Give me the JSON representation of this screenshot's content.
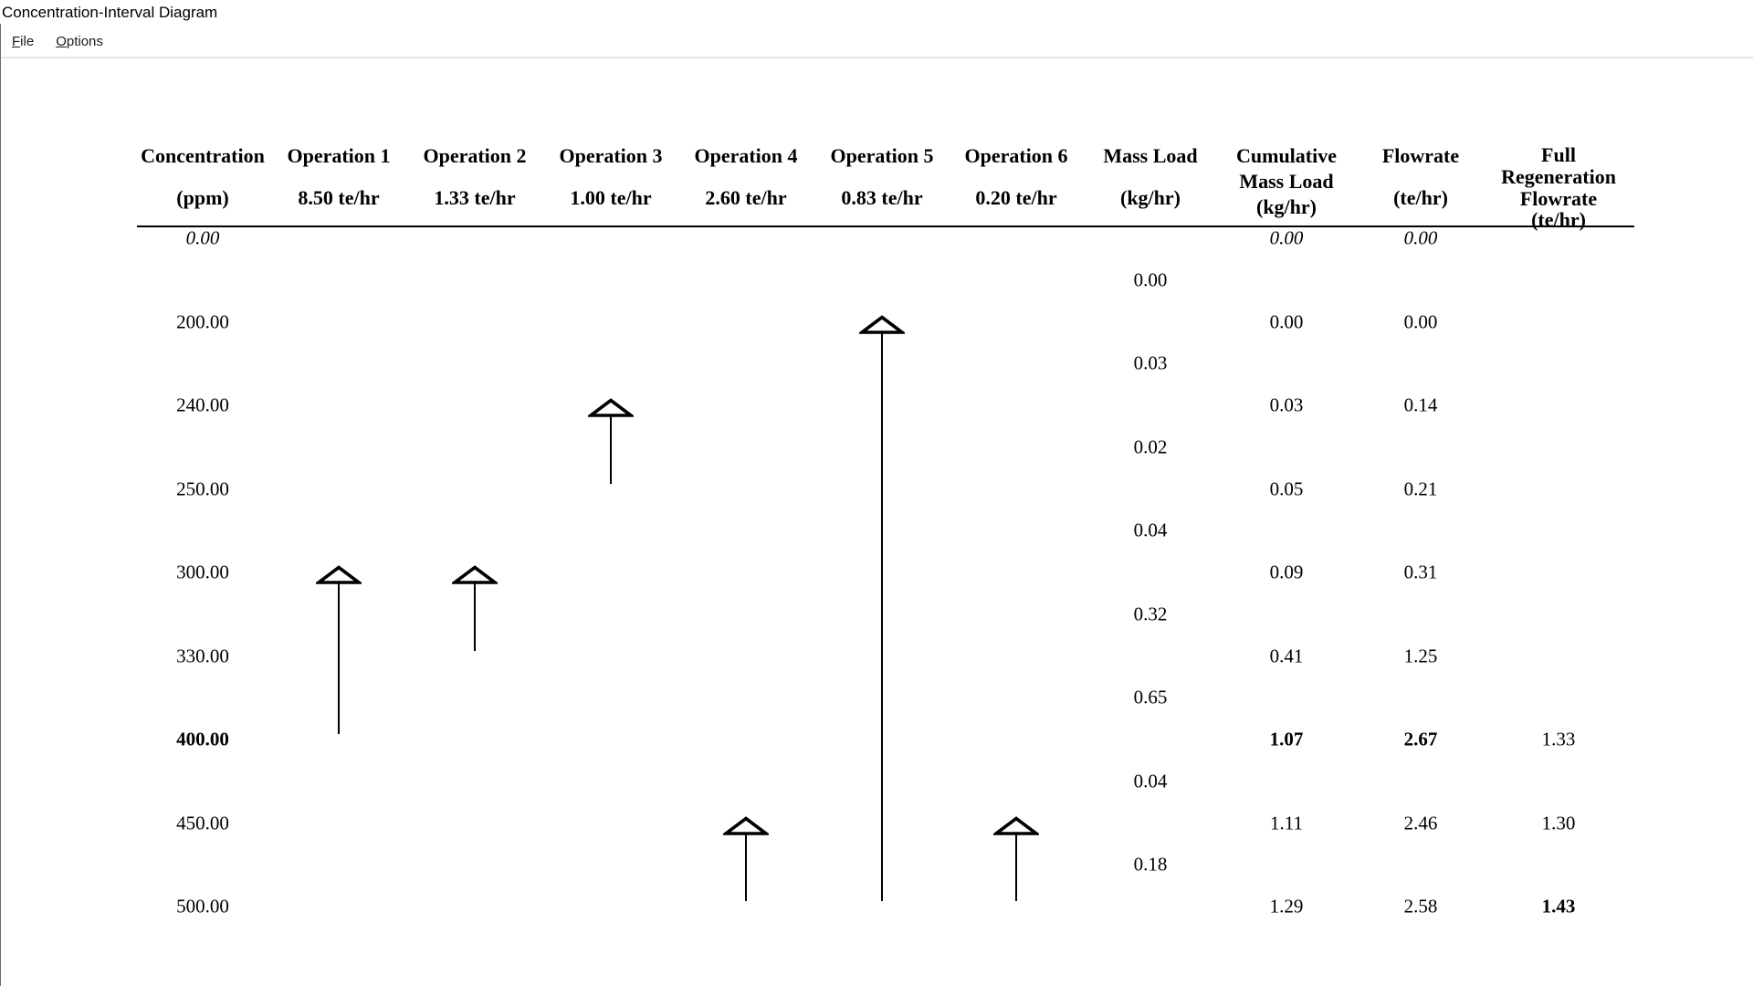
{
  "window": {
    "title": "Concentration-Interval Diagram"
  },
  "menu": {
    "items": [
      {
        "label": "File",
        "underline_index": 0
      },
      {
        "label": "Options",
        "underline_index": 0
      }
    ]
  },
  "colors": {
    "text": "#000000",
    "rule": "#000000",
    "arrow": "#000000",
    "arrowhead_fill": "#ffffff",
    "menu_separator": "#e4e4e4",
    "window_border": "#6b6b6b"
  },
  "chart_data": {
    "type": "table",
    "title": "Concentration-Interval Diagram",
    "columns": [
      {
        "name": "concentration",
        "lines": [
          "Concentration",
          "(ppm)"
        ]
      },
      {
        "name": "operation-1",
        "lines": [
          "Operation 1",
          "8.50 te/hr"
        ]
      },
      {
        "name": "operation-2",
        "lines": [
          "Operation 2",
          "1.33 te/hr"
        ]
      },
      {
        "name": "operation-3",
        "lines": [
          "Operation 3",
          "1.00 te/hr"
        ]
      },
      {
        "name": "operation-4",
        "lines": [
          "Operation 4",
          "2.60 te/hr"
        ]
      },
      {
        "name": "operation-5",
        "lines": [
          "Operation 5",
          "0.83 te/hr"
        ]
      },
      {
        "name": "operation-6",
        "lines": [
          "Operation 6",
          "0.20 te/hr"
        ]
      },
      {
        "name": "mass-load",
        "lines": [
          "Mass Load",
          "(kg/hr)"
        ]
      },
      {
        "name": "cumulative-mass-load",
        "lines": [
          "Cumulative",
          "Mass Load",
          "(kg/hr)"
        ]
      },
      {
        "name": "flowrate",
        "lines": [
          "Flowrate",
          "(te/hr)"
        ]
      },
      {
        "name": "full-regeneration-flowrate",
        "lines": [
          "Full",
          "Regeneration",
          "Flowrate",
          "(te/hr)"
        ]
      }
    ],
    "rows": [
      {
        "concentration": "0.00",
        "concentration_style": "italic",
        "cumulative_mass_load": "0.00",
        "cumulative_style": "italic",
        "flowrate": "0.00",
        "flowrate_style": "italic",
        "full_regeneration_flowrate": "",
        "regen_style": "normal"
      },
      {
        "concentration": "200.00",
        "concentration_style": "normal",
        "cumulative_mass_load": "0.00",
        "cumulative_style": "normal",
        "flowrate": "0.00",
        "flowrate_style": "normal",
        "full_regeneration_flowrate": "",
        "regen_style": "normal"
      },
      {
        "concentration": "240.00",
        "concentration_style": "normal",
        "cumulative_mass_load": "0.03",
        "cumulative_style": "normal",
        "flowrate": "0.14",
        "flowrate_style": "normal",
        "full_regeneration_flowrate": "",
        "regen_style": "normal"
      },
      {
        "concentration": "250.00",
        "concentration_style": "normal",
        "cumulative_mass_load": "0.05",
        "cumulative_style": "normal",
        "flowrate": "0.21",
        "flowrate_style": "normal",
        "full_regeneration_flowrate": "",
        "regen_style": "normal"
      },
      {
        "concentration": "300.00",
        "concentration_style": "normal",
        "cumulative_mass_load": "0.09",
        "cumulative_style": "normal",
        "flowrate": "0.31",
        "flowrate_style": "normal",
        "full_regeneration_flowrate": "",
        "regen_style": "normal"
      },
      {
        "concentration": "330.00",
        "concentration_style": "normal",
        "cumulative_mass_load": "0.41",
        "cumulative_style": "normal",
        "flowrate": "1.25",
        "flowrate_style": "normal",
        "full_regeneration_flowrate": "",
        "regen_style": "normal"
      },
      {
        "concentration": "400.00",
        "concentration_style": "bold",
        "cumulative_mass_load": "1.07",
        "cumulative_style": "bold",
        "flowrate": "2.67",
        "flowrate_style": "bold",
        "full_regeneration_flowrate": "1.33",
        "regen_style": "normal"
      },
      {
        "concentration": "450.00",
        "concentration_style": "normal",
        "cumulative_mass_load": "1.11",
        "cumulative_style": "normal",
        "flowrate": "2.46",
        "flowrate_style": "normal",
        "full_regeneration_flowrate": "1.30",
        "regen_style": "normal"
      },
      {
        "concentration": "500.00",
        "concentration_style": "normal",
        "cumulative_mass_load": "1.29",
        "cumulative_style": "normal",
        "flowrate": "2.58",
        "flowrate_style": "normal",
        "full_regeneration_flowrate": "1.43",
        "regen_style": "bold"
      }
    ],
    "mass_load_intervals": [
      "0.00",
      "0.03",
      "0.02",
      "0.04",
      "0.32",
      "0.65",
      "0.04",
      "0.18"
    ],
    "operations": [
      {
        "name": "Operation 1",
        "flowrate": "8.50 te/hr",
        "from_ppm": "400.00",
        "to_ppm": "300.00"
      },
      {
        "name": "Operation 2",
        "flowrate": "1.33 te/hr",
        "from_ppm": "330.00",
        "to_ppm": "300.00"
      },
      {
        "name": "Operation 3",
        "flowrate": "1.00 te/hr",
        "from_ppm": "250.00",
        "to_ppm": "240.00"
      },
      {
        "name": "Operation 4",
        "flowrate": "2.60 te/hr",
        "from_ppm": "500.00",
        "to_ppm": "450.00"
      },
      {
        "name": "Operation 5",
        "flowrate": "0.83 te/hr",
        "from_ppm": "500.00",
        "to_ppm": "200.00"
      },
      {
        "name": "Operation 6",
        "flowrate": "0.20 te/hr",
        "from_ppm": "500.00",
        "to_ppm": "450.00"
      }
    ]
  }
}
